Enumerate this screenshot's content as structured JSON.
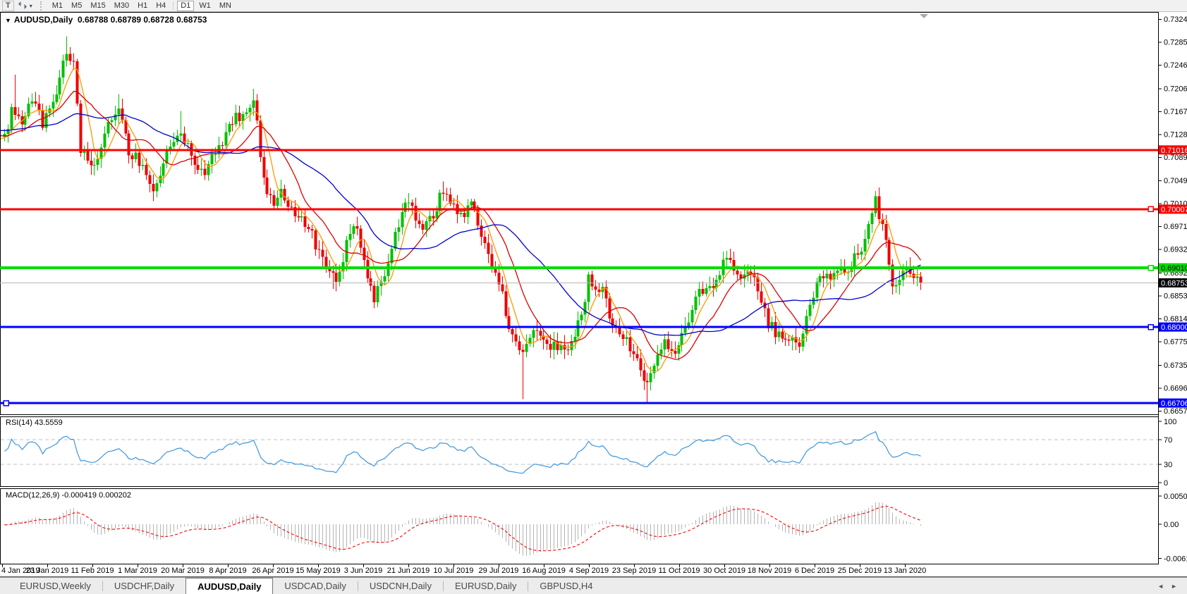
{
  "toolbar": {
    "text_tool_label": "T",
    "timeframes": [
      "M1",
      "M5",
      "M15",
      "M30",
      "H1",
      "H4",
      "D1",
      "W1",
      "MN"
    ],
    "active_timeframe": "D1"
  },
  "chart_window": {
    "title": {
      "symbol_period": "AUDUSD,Daily",
      "quote": "0.68788 0.68789 0.68728 0.68753"
    }
  },
  "indicators": {
    "rsi_label": "RSI(14) 43.5559",
    "macd_label": "MACD(12,26,9) -0.000419 0.000202"
  },
  "tabs": {
    "items": [
      {
        "label": "EURUSD,Weekly",
        "active": false
      },
      {
        "label": "USDCHF,Daily",
        "active": false
      },
      {
        "label": "AUDUSD,Daily",
        "active": true
      },
      {
        "label": "USDCAD,Daily",
        "active": false
      },
      {
        "label": "USDCNH,Daily",
        "active": false
      },
      {
        "label": "EURUSD,Daily",
        "active": false
      },
      {
        "label": "GBPUSD,H4",
        "active": false
      }
    ]
  },
  "chart_data": {
    "type": "candlestick",
    "symbol": "AUDUSD",
    "timeframe": "Daily",
    "ohlc": {
      "open": "0.68788",
      "high": "0.68789",
      "low": "0.68728",
      "close": "0.68753"
    },
    "candle_colors": {
      "up": "#00c000",
      "down": "#ee0000"
    },
    "price_axis": {
      "min": 0.6657,
      "max": 0.7324,
      "ticks": [
        "0.73240",
        "0.72850",
        "0.72460",
        "0.72060",
        "0.71670",
        "0.71280",
        "0.70890",
        "0.70490",
        "0.70100",
        "0.69710",
        "0.69320",
        "0.68920",
        "0.68530",
        "0.68140",
        "0.67750",
        "0.67350",
        "0.66960",
        "0.66570"
      ]
    },
    "date_ticks": [
      "4 Jan 2019",
      "23 Jan 2019",
      "11 Feb 2019",
      "1 Mar 2019",
      "20 Mar 2019",
      "8 Apr 2019",
      "26 Apr 2019",
      "15 May 2019",
      "3 Jun 2019",
      "21 Jun 2019",
      "10 Jul 2019",
      "29 Jul 2019",
      "16 Aug 2019",
      "4 Sep 2019",
      "23 Sep 2019",
      "11 Oct 2019",
      "30 Oct 2019",
      "18 Nov 2019",
      "6 Dec 2019",
      "25 Dec 2019",
      "13 Jan 2020"
    ],
    "hlines": [
      {
        "price": 0.71016,
        "label": "0.71016",
        "color": "#ff0000",
        "width": 3,
        "text_color": "#ffffff",
        "handle": "none"
      },
      {
        "price": 0.70007,
        "label": "0.70007",
        "color": "#ff0000",
        "width": 3,
        "text_color": "#ffffff",
        "handle": "right"
      },
      {
        "price": 0.6901,
        "label": "0.69010",
        "color": "#00dd00",
        "width": 4,
        "text_color": "#000000",
        "handle": "right"
      },
      {
        "price": 0.68,
        "label": "0.68000",
        "color": "#0000ff",
        "width": 3,
        "text_color": "#ffffff",
        "handle": "right"
      },
      {
        "price": 0.66706,
        "label": "0.66706",
        "color": "#0000ff",
        "width": 3,
        "text_color": "#ffffff",
        "handle": "left"
      }
    ],
    "current_price": {
      "value": 0.68753,
      "label": "0.68753",
      "line_color": "#b4b4b4",
      "badge_bg": "#000000",
      "text_color": "#ffffff"
    },
    "moving_averages": [
      {
        "period": 6,
        "color": "#ff9900"
      },
      {
        "period": 14,
        "color": "#dd0000"
      },
      {
        "period": 34,
        "color": "#0000cc"
      }
    ],
    "anchors": [
      [
        -60,
        0.7075
      ],
      [
        -40,
        0.712
      ],
      [
        -20,
        0.715
      ],
      [
        -5,
        0.7125
      ],
      [
        0,
        0.7122
      ],
      [
        2,
        0.7165
      ],
      [
        5,
        0.715
      ],
      [
        8,
        0.7188
      ],
      [
        11,
        0.715
      ],
      [
        13,
        0.7168
      ],
      [
        16,
        0.7215
      ],
      [
        18,
        0.7272
      ],
      [
        20,
        0.7248
      ],
      [
        22,
        0.7105
      ],
      [
        25,
        0.7065
      ],
      [
        28,
        0.711
      ],
      [
        30,
        0.7142
      ],
      [
        33,
        0.7168
      ],
      [
        36,
        0.7098
      ],
      [
        39,
        0.7082
      ],
      [
        43,
        0.7035
      ],
      [
        47,
        0.7092
      ],
      [
        51,
        0.7138
      ],
      [
        54,
        0.7088
      ],
      [
        58,
        0.7065
      ],
      [
        62,
        0.711
      ],
      [
        66,
        0.7148
      ],
      [
        70,
        0.7172
      ],
      [
        72,
        0.7192
      ],
      [
        74,
        0.7095
      ],
      [
        76,
        0.7032
      ],
      [
        78,
        0.7012
      ],
      [
        80,
        0.7035
      ],
      [
        83,
        0.7005
      ],
      [
        85,
        0.6992
      ],
      [
        88,
        0.6965
      ],
      [
        90,
        0.6942
      ],
      [
        93,
        0.6895
      ],
      [
        96,
        0.6882
      ],
      [
        98,
        0.6915
      ],
      [
        100,
        0.6968
      ],
      [
        102,
        0.6975
      ],
      [
        104,
        0.6905
      ],
      [
        107,
        0.6852
      ],
      [
        109,
        0.6868
      ],
      [
        111,
        0.6905
      ],
      [
        113,
        0.6952
      ],
      [
        115,
        0.6988
      ],
      [
        117,
        0.7018
      ],
      [
        119,
        0.699
      ],
      [
        121,
        0.6968
      ],
      [
        124,
        0.6992
      ],
      [
        127,
        0.7035
      ],
      [
        129,
        0.7012
      ],
      [
        131,
        0.6988
      ],
      [
        133,
        0.6998
      ],
      [
        135,
        0.701
      ],
      [
        138,
        0.6962
      ],
      [
        140,
        0.6925
      ],
      [
        142,
        0.6885
      ],
      [
        144,
        0.6852
      ],
      [
        146,
        0.6805
      ],
      [
        148,
        0.6775
      ],
      [
        150,
        0.676
      ],
      [
        152,
        0.6788
      ],
      [
        154,
        0.6795
      ],
      [
        156,
        0.6782
      ],
      [
        158,
        0.677
      ],
      [
        160,
        0.6768
      ],
      [
        162,
        0.6758
      ],
      [
        164,
        0.6775
      ],
      [
        166,
        0.6812
      ],
      [
        168,
        0.6852
      ],
      [
        169,
        0.6882
      ],
      [
        171,
        0.6872
      ],
      [
        173,
        0.6862
      ],
      [
        175,
        0.6822
      ],
      [
        177,
        0.6802
      ],
      [
        179,
        0.6788
      ],
      [
        181,
        0.6765
      ],
      [
        183,
        0.6742
      ],
      [
        185,
        0.6712
      ],
      [
        186,
        0.6705
      ],
      [
        188,
        0.6732
      ],
      [
        190,
        0.6765
      ],
      [
        192,
        0.6772
      ],
      [
        194,
        0.6758
      ],
      [
        196,
        0.6782
      ],
      [
        198,
        0.6815
      ],
      [
        200,
        0.6858
      ],
      [
        202,
        0.6852
      ],
      [
        204,
        0.6862
      ],
      [
        206,
        0.6885
      ],
      [
        208,
        0.6912
      ],
      [
        209,
        0.6922
      ],
      [
        211,
        0.6898
      ],
      [
        213,
        0.6888
      ],
      [
        215,
        0.6902
      ],
      [
        217,
        0.6882
      ],
      [
        219,
        0.6845
      ],
      [
        221,
        0.6805
      ],
      [
        223,
        0.6792
      ],
      [
        225,
        0.6785
      ],
      [
        227,
        0.6778
      ],
      [
        229,
        0.6768
      ],
      [
        230,
        0.6762
      ],
      [
        232,
        0.6822
      ],
      [
        234,
        0.6856
      ],
      [
        236,
        0.6876
      ],
      [
        239,
        0.6887
      ],
      [
        242,
        0.6897
      ],
      [
        245,
        0.6908
      ],
      [
        248,
        0.6938
      ],
      [
        250,
        0.6968
      ],
      [
        252,
        0.7018
      ],
      [
        253,
        0.6986
      ],
      [
        255,
        0.6946
      ],
      [
        257,
        0.6876
      ],
      [
        258,
        0.6866
      ],
      [
        260,
        0.6896
      ],
      [
        262,
        0.6888
      ],
      [
        264,
        0.6878
      ],
      [
        265,
        0.68753
      ]
    ],
    "wick_overrides": {
      "3": {
        "high": 0.723
      },
      "18": {
        "high": 0.7295
      },
      "33": {
        "high": 0.7197
      },
      "51": {
        "high": 0.7168
      },
      "72": {
        "high": 0.7206
      },
      "95": {
        "low": 0.6865
      },
      "107": {
        "low": 0.6832
      },
      "127": {
        "high": 0.7048
      },
      "150": {
        "low": 0.6677
      },
      "186": {
        "low": 0.6671
      },
      "252": {
        "high": 0.7032
      }
    },
    "rsi": {
      "period": 14,
      "current": 43.5559,
      "color": "#3c96dc",
      "levels": [
        {
          "value": 100,
          "label": "100",
          "dashed": false
        },
        {
          "value": 70,
          "label": "70",
          "dashed": true
        },
        {
          "value": 30,
          "label": "30",
          "dashed": true
        },
        {
          "value": 0,
          "label": "0",
          "dashed": false
        }
      ]
    },
    "macd": {
      "fast": 12,
      "slow": 26,
      "signal": 9,
      "main_value": -0.000419,
      "signal_value": 0.000202,
      "histogram_color": "#b4b4b4",
      "signal_color": "#ff0000",
      "axis_ticks": [
        {
          "value": 0.005076,
          "label": "0.005076"
        },
        {
          "value": 0,
          "label": "0.00"
        },
        {
          "value": -0.006148,
          "label": "-0.006148"
        }
      ]
    }
  }
}
